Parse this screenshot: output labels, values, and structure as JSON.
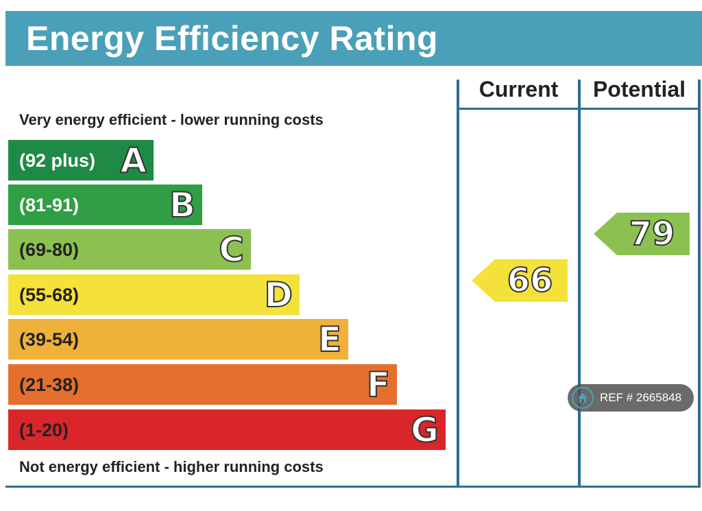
{
  "title": "Energy Efficiency Rating",
  "top_note": "Very energy efficient - lower running costs",
  "bottom_note": "Not energy efficient - higher running costs",
  "columns": {
    "current": "Current",
    "potential": "Potential"
  },
  "chart_data": {
    "type": "bar",
    "categories": [
      "A",
      "B",
      "C",
      "D",
      "E",
      "F",
      "G"
    ],
    "ranges": [
      "(92 plus)",
      "(81-91)",
      "(69-80)",
      "(55-68)",
      "(39-54)",
      "(21-38)",
      "(1-20)"
    ],
    "colors": [
      "#1f8a45",
      "#2f9e44",
      "#8cc152",
      "#f4e23a",
      "#f0b13b",
      "#e5702d",
      "#d8262a"
    ],
    "range_text_colors": [
      "#ffffff",
      "#ffffff",
      "#222222",
      "#222222",
      "#222222",
      "#222222",
      "#222222"
    ],
    "current": {
      "value": "66",
      "color": "#f4e23a"
    },
    "potential": {
      "value": "79",
      "color": "#8cc152"
    }
  },
  "badge": {
    "text": "REF # 2665848",
    "icon": "home-icon"
  }
}
